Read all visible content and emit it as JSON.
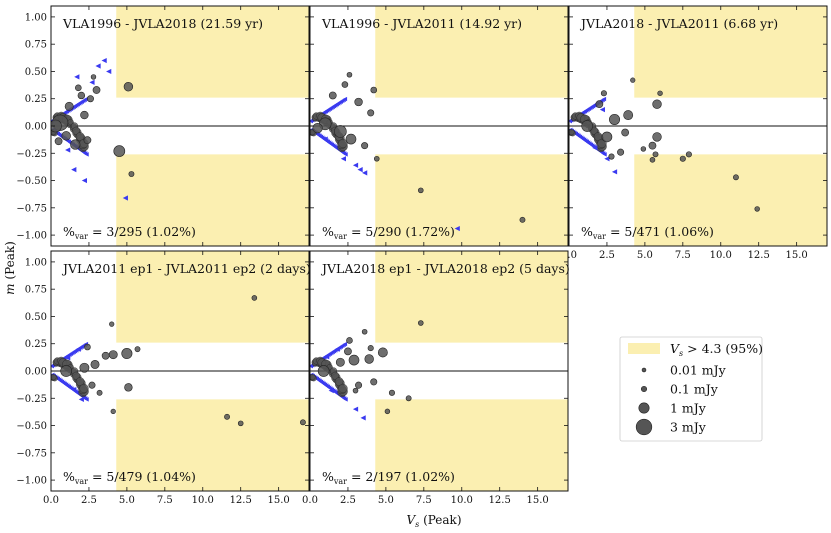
{
  "figure": {
    "xlabel_var": "V",
    "xlabel_sub": "s",
    "xlabel_suffix": "(Peak)",
    "ylabel_var": "m",
    "ylabel_suffix": "(Peak)"
  },
  "colors": {
    "shade": "#fbefb1",
    "marker": "#555555",
    "upper_limit": "#3a3af0",
    "axis": "#111111"
  },
  "chart_data": [
    {
      "type": "scatter",
      "title": "VLA1996 - JVLA2018 (21.59 yr)",
      "footer": "%var = 3/295 (1.02%)",
      "footer_main": "%",
      "footer_sub": "var",
      "footer_rest": "= 3/295 (1.02%)",
      "xlim": [
        0,
        17
      ],
      "ylim": [
        -1.1,
        1.1
      ],
      "vs_threshold": 4.3,
      "m_threshold": 0.26,
      "points": [
        {
          "vs": 5.1,
          "m": 0.36,
          "flux": 0.6
        },
        {
          "vs": 4.5,
          "m": -0.23,
          "flux": 1.2
        },
        {
          "vs": 5.3,
          "m": -0.44,
          "flux": 0.08
        },
        {
          "vs": 3.0,
          "m": 0.33,
          "flux": 0.3
        },
        {
          "vs": 2.6,
          "m": 0.25,
          "flux": 0.2
        },
        {
          "vs": 0.6,
          "m": 0.03,
          "flux": 3.0
        },
        {
          "vs": 0.3,
          "m": 0.0,
          "flux": 1.5
        },
        {
          "vs": 1.6,
          "m": -0.17,
          "flux": 0.8
        },
        {
          "vs": 2.2,
          "m": 0.1,
          "flux": 0.4
        },
        {
          "vs": 2.0,
          "m": 0.28,
          "flux": 0.25
        },
        {
          "vs": 1.8,
          "m": 0.35,
          "flux": 0.15
        },
        {
          "vs": 2.4,
          "m": -0.13,
          "flux": 0.3
        },
        {
          "vs": 1.2,
          "m": 0.18,
          "flux": 0.5
        },
        {
          "vs": 1.0,
          "m": -0.09,
          "flux": 0.6
        },
        {
          "vs": 2.8,
          "m": 0.45,
          "flux": 0.05
        },
        {
          "vs": 0.5,
          "m": -0.14,
          "flux": 0.3
        }
      ],
      "limits": [
        {
          "vs": 4.9,
          "m": -0.66
        },
        {
          "vs": 3.5,
          "m": 0.6
        },
        {
          "vs": 3.1,
          "m": 0.55
        },
        {
          "vs": 2.7,
          "m": 0.4
        },
        {
          "vs": 1.5,
          "m": -0.4
        },
        {
          "vs": 2.2,
          "m": -0.5
        },
        {
          "vs": 1.1,
          "m": -0.22
        },
        {
          "vs": 3.8,
          "m": 0.5
        },
        {
          "vs": 1.7,
          "m": 0.45
        }
      ]
    },
    {
      "type": "scatter",
      "title": "VLA1996 - JVLA2011 (14.92 yr)",
      "footer": "%var = 5/290 (1.72%)",
      "footer_main": "%",
      "footer_sub": "var",
      "footer_rest": "= 5/290 (1.72%)",
      "xlim": [
        0,
        17
      ],
      "ylim": [
        -1.1,
        1.1
      ],
      "vs_threshold": 4.3,
      "m_threshold": 0.26,
      "points": [
        {
          "vs": 14.0,
          "m": -0.86,
          "flux": 0.08
        },
        {
          "vs": 7.3,
          "m": -0.59,
          "flux": 0.06
        },
        {
          "vs": 4.4,
          "m": -0.3,
          "flux": 0.06
        },
        {
          "vs": 4.2,
          "m": 0.33,
          "flux": 0.15
        },
        {
          "vs": 4.0,
          "m": 0.12,
          "flux": 0.2
        },
        {
          "vs": 3.2,
          "m": 0.22,
          "flux": 0.4
        },
        {
          "vs": 2.7,
          "m": -0.12,
          "flux": 0.9
        },
        {
          "vs": 2.0,
          "m": -0.05,
          "flux": 1.5
        },
        {
          "vs": 1.0,
          "m": 0.02,
          "flux": 1.5
        },
        {
          "vs": 2.3,
          "m": 0.38,
          "flux": 0.15
        },
        {
          "vs": 2.6,
          "m": 0.47,
          "flux": 0.06
        },
        {
          "vs": 3.6,
          "m": -0.18,
          "flux": 0.2
        },
        {
          "vs": 1.5,
          "m": 0.28,
          "flux": 0.3
        },
        {
          "vs": 0.5,
          "m": -0.02,
          "flux": 0.8
        }
      ],
      "limits": [
        {
          "vs": 9.7,
          "m": -0.94
        },
        {
          "vs": 3.6,
          "m": -0.43
        },
        {
          "vs": 3.0,
          "m": -0.36
        },
        {
          "vs": 2.2,
          "m": -0.3
        },
        {
          "vs": 1.0,
          "m": -0.12
        },
        {
          "vs": 3.3,
          "m": -0.4
        }
      ]
    },
    {
      "type": "scatter",
      "title": "JVLA2018 - JVLA2011 (6.68 yr)",
      "footer": "%var = 5/471 (1.06%)",
      "footer_main": "%",
      "footer_sub": "var",
      "footer_rest": "= 5/471 (1.06%)",
      "xlim": [
        0,
        17
      ],
      "ylim": [
        -1.1,
        1.1
      ],
      "vs_threshold": 4.3,
      "m_threshold": 0.26,
      "points": [
        {
          "vs": 5.8,
          "m": 0.2,
          "flux": 0.6
        },
        {
          "vs": 6.0,
          "m": 0.3,
          "flux": 0.05
        },
        {
          "vs": 5.8,
          "m": -0.1,
          "flux": 0.6
        },
        {
          "vs": 5.5,
          "m": -0.18,
          "flux": 0.3
        },
        {
          "vs": 5.7,
          "m": -0.26,
          "flux": 0.08
        },
        {
          "vs": 5.5,
          "m": -0.31,
          "flux": 0.06
        },
        {
          "vs": 7.5,
          "m": -0.3,
          "flux": 0.1
        },
        {
          "vs": 7.9,
          "m": -0.26,
          "flux": 0.1
        },
        {
          "vs": 11.0,
          "m": -0.47,
          "flux": 0.08
        },
        {
          "vs": 12.4,
          "m": -0.76,
          "flux": 0.05
        },
        {
          "vs": 4.9,
          "m": -0.21,
          "flux": 0.05
        },
        {
          "vs": 4.2,
          "m": 0.42,
          "flux": 0.04
        },
        {
          "vs": 3.9,
          "m": 0.1,
          "flux": 0.7
        },
        {
          "vs": 3.0,
          "m": 0.06,
          "flux": 1.0
        },
        {
          "vs": 2.5,
          "m": -0.1,
          "flux": 0.9
        },
        {
          "vs": 3.7,
          "m": -0.06,
          "flux": 0.3
        },
        {
          "vs": 1.2,
          "m": 0.0,
          "flux": 1.2
        },
        {
          "vs": 2.0,
          "m": 0.2,
          "flux": 0.3
        },
        {
          "vs": 2.3,
          "m": 0.3,
          "flux": 0.1
        },
        {
          "vs": 2.8,
          "m": -0.28,
          "flux": 0.1
        },
        {
          "vs": 3.4,
          "m": -0.24,
          "flux": 0.2
        }
      ],
      "limits": [
        {
          "vs": 2.5,
          "m": -0.3
        },
        {
          "vs": 3.0,
          "m": -0.42
        },
        {
          "vs": 1.7,
          "m": -0.2
        },
        {
          "vs": 2.2,
          "m": 0.15
        }
      ]
    },
    {
      "type": "scatter",
      "title": "JVLA2011 ep1 - JVLA2011 ep2 (2 days)",
      "footer": "%var = 5/479 (1.04%)",
      "footer_main": "%",
      "footer_sub": "var",
      "footer_rest": "= 5/479 (1.04%)",
      "xlim": [
        0,
        17
      ],
      "ylim": [
        -1.1,
        1.1
      ],
      "vs_threshold": 4.3,
      "m_threshold": 0.26,
      "points": [
        {
          "vs": 13.4,
          "m": 0.67,
          "flux": 0.06
        },
        {
          "vs": 5.0,
          "m": 0.16,
          "flux": 1.0
        },
        {
          "vs": 5.1,
          "m": -0.15,
          "flux": 0.4
        },
        {
          "vs": 5.7,
          "m": 0.2,
          "flux": 0.08
        },
        {
          "vs": 11.6,
          "m": -0.42,
          "flux": 0.08
        },
        {
          "vs": 12.5,
          "m": -0.48,
          "flux": 0.06
        },
        {
          "vs": 16.6,
          "m": -0.47,
          "flux": 0.08
        },
        {
          "vs": 4.1,
          "m": 0.15,
          "flux": 0.5
        },
        {
          "vs": 3.6,
          "m": 0.14,
          "flux": 0.3
        },
        {
          "vs": 4.0,
          "m": 0.43,
          "flux": 0.04
        },
        {
          "vs": 4.1,
          "m": -0.37,
          "flux": 0.04
        },
        {
          "vs": 2.2,
          "m": 0.03,
          "flux": 0.7
        },
        {
          "vs": 1.0,
          "m": 0.0,
          "flux": 1.2
        },
        {
          "vs": 2.7,
          "m": -0.13,
          "flux": 0.2
        },
        {
          "vs": 3.2,
          "m": -0.2,
          "flux": 0.08
        },
        {
          "vs": 2.4,
          "m": 0.22,
          "flux": 0.15
        },
        {
          "vs": 2.9,
          "m": 0.06,
          "flux": 0.5
        }
      ],
      "limits": [
        {
          "vs": 1.1,
          "m": 0.12
        },
        {
          "vs": 1.5,
          "m": -0.17
        },
        {
          "vs": 1.8,
          "m": 0.2
        },
        {
          "vs": 2.0,
          "m": -0.26
        }
      ]
    },
    {
      "type": "scatter",
      "title": "JVLA2018 ep1 - JVLA2018 ep2 (5 days)",
      "footer": "%var = 2/197 (1.02%)",
      "footer_main": "%",
      "footer_sub": "var",
      "footer_rest": "= 2/197 (1.02%)",
      "xlim": [
        0,
        17
      ],
      "ylim": [
        -1.1,
        1.1
      ],
      "vs_threshold": 4.3,
      "m_threshold": 0.26,
      "points": [
        {
          "vs": 7.3,
          "m": 0.44,
          "flux": 0.06
        },
        {
          "vs": 4.8,
          "m": 0.17,
          "flux": 0.7
        },
        {
          "vs": 6.5,
          "m": -0.25,
          "flux": 0.08
        },
        {
          "vs": 5.4,
          "m": -0.2,
          "flux": 0.1
        },
        {
          "vs": 5.1,
          "m": -0.37,
          "flux": 0.05
        },
        {
          "vs": 2.9,
          "m": 0.1,
          "flux": 0.9
        },
        {
          "vs": 3.9,
          "m": 0.11,
          "flux": 0.6
        },
        {
          "vs": 2.0,
          "m": 0.08,
          "flux": 0.5
        },
        {
          "vs": 0.9,
          "m": 0.0,
          "flux": 1.2
        },
        {
          "vs": 2.6,
          "m": 0.28,
          "flux": 0.15
        },
        {
          "vs": 3.6,
          "m": 0.36,
          "flux": 0.06
        },
        {
          "vs": 3.2,
          "m": -0.13,
          "flux": 0.2
        },
        {
          "vs": 3.0,
          "m": -0.18,
          "flux": 0.06
        },
        {
          "vs": 2.5,
          "m": 0.18,
          "flux": 0.3
        },
        {
          "vs": 4.2,
          "m": -0.1,
          "flux": 0.2
        },
        {
          "vs": 4.0,
          "m": 0.21,
          "flux": 0.1
        }
      ],
      "limits": [
        {
          "vs": 3.5,
          "m": -0.43
        },
        {
          "vs": 3.0,
          "m": -0.35
        },
        {
          "vs": 1.4,
          "m": -0.18
        },
        {
          "vs": 1.8,
          "m": 0.2
        },
        {
          "vs": 1.1,
          "m": 0.13
        }
      ]
    }
  ],
  "axes": {
    "yticks": [
      1.0,
      0.75,
      0.5,
      0.25,
      0.0,
      -0.25,
      -0.5,
      -0.75,
      -1.0
    ],
    "ytick_labels": [
      "1.00",
      "0.75",
      "0.50",
      "0.25",
      "0.00",
      "−0.25",
      "−0.50",
      "−0.75",
      "−1.00"
    ],
    "xticks": [
      0.0,
      2.5,
      5.0,
      7.5,
      10.0,
      12.5,
      15.0
    ],
    "xtick_labels": [
      "0.0",
      "2.5",
      "5.0",
      "7.5",
      "10.0",
      "12.5",
      "15.0"
    ]
  },
  "legend": {
    "shade_main": "V",
    "shade_sub": "s",
    "shade_rest": "> 4.3 (95%)",
    "items": [
      {
        "label": "0.01 mJy",
        "flux": 0.01
      },
      {
        "label": "0.1 mJy",
        "flux": 0.1
      },
      {
        "label": "1 mJy",
        "flux": 1
      },
      {
        "label": "3 mJy",
        "flux": 3
      }
    ]
  }
}
